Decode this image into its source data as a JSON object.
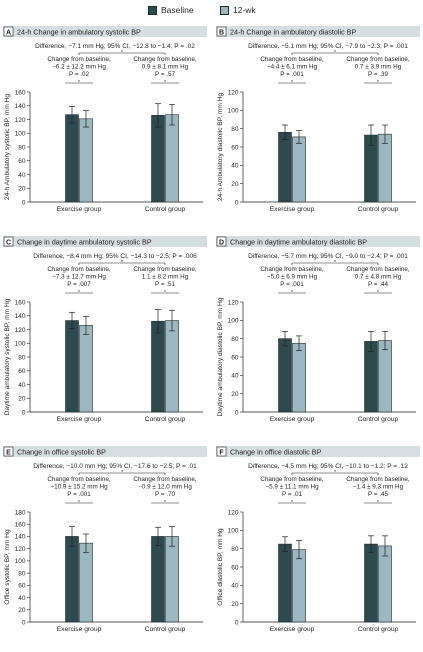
{
  "legend": [
    {
      "label": "Baseline",
      "color": "#2d4a4e"
    },
    {
      "label": "12-wk",
      "color": "#9bb7c1"
    }
  ],
  "colors": {
    "header_bg": "#d5dee0",
    "axis": "#231f20"
  },
  "chart_data": [
    {
      "type": "bar",
      "panel": "A",
      "title": "24-h Change in ambulatory systolic BP",
      "ylabel": "24-h Ambulatory systolic BP, mm Hg",
      "ylim": [
        0,
        160
      ],
      "yticks": [
        0,
        20,
        40,
        60,
        80,
        100,
        120,
        140,
        160
      ],
      "categories": [
        "Exercise group",
        "Control group"
      ],
      "series": [
        {
          "name": "Baseline",
          "values": [
            127,
            126
          ],
          "err": [
            12,
            17
          ]
        },
        {
          "name": "12-wk",
          "values": [
            121,
            127
          ],
          "err": [
            12,
            15
          ]
        }
      ],
      "difference": "Difference, −7.1 mm Hg; 95% CI, −12.8 to −1.4; P = .02",
      "annotations": [
        [
          "Change from baseline,",
          "−6.2 ± 12.2 mm Hg",
          "P = .02"
        ],
        [
          "Change from baseline,",
          "0.9 ± 8.1 mm Hg",
          "P = .57"
        ]
      ]
    },
    {
      "type": "bar",
      "panel": "B",
      "title": "24-h Change in ambulatory diastolic BP",
      "ylabel": "24-h Ambulatory diastolic BP, mm Hg",
      "ylim": [
        0,
        120
      ],
      "yticks": [
        0,
        20,
        40,
        60,
        80,
        100,
        120
      ],
      "categories": [
        "Exercise group",
        "Control group"
      ],
      "series": [
        {
          "name": "Baseline",
          "values": [
            76,
            73
          ],
          "err": [
            8,
            11
          ]
        },
        {
          "name": "12-wk",
          "values": [
            71,
            74
          ],
          "err": [
            7,
            10
          ]
        }
      ],
      "difference": "Difference, −5.1 mm Hg; 95% CI, −7.9 to −2.3; P = .001",
      "annotations": [
        [
          "Change from baseline,",
          "−4.4 ± 6.1 mm Hg",
          "P = .001"
        ],
        [
          "Change from baseline,",
          "0.7 ± 3.9 mm Hg",
          "P = .39"
        ]
      ]
    },
    {
      "type": "bar",
      "panel": "C",
      "title": "Change in daytime ambulatory systolic BP",
      "ylabel": "Daytime ambulatory systolic BP, mm Hg",
      "ylim": [
        0,
        160
      ],
      "yticks": [
        0,
        20,
        40,
        60,
        80,
        100,
        120,
        140,
        160
      ],
      "categories": [
        "Exercise group",
        "Control group"
      ],
      "series": [
        {
          "name": "Baseline",
          "values": [
            133,
            132
          ],
          "err": [
            12,
            17
          ]
        },
        {
          "name": "12-wk",
          "values": [
            126,
            133
          ],
          "err": [
            13,
            15
          ]
        }
      ],
      "difference": "Difference, −8.4 mm Hg; 95% CI, −14.3 to −2.5; P = .006",
      "annotations": [
        [
          "Change from baseline,",
          "−7.3 ± 12.7 mm Hg",
          "P = .007"
        ],
        [
          "Change from baseline,",
          "1.1 ± 8.2 mm Hg",
          "P = .51"
        ]
      ]
    },
    {
      "type": "bar",
      "panel": "D",
      "title": "Change in daytime ambulatory diastolic BP",
      "ylabel": "Daytime ambulatory diastolic BP, mm Hg",
      "ylim": [
        0,
        120
      ],
      "yticks": [
        0,
        20,
        40,
        60,
        80,
        100,
        120
      ],
      "categories": [
        "Exercise group",
        "Control group"
      ],
      "series": [
        {
          "name": "Baseline",
          "values": [
            80,
            77
          ],
          "err": [
            8,
            11
          ]
        },
        {
          "name": "12-wk",
          "values": [
            75,
            78
          ],
          "err": [
            8,
            10
          ]
        }
      ],
      "difference": "Difference, −5.7 mm Hg; 95% CI, −9.0 to −2.4; P = .001",
      "annotations": [
        [
          "Change from baseline,",
          "−5.0 ± 6.9 mm Hg",
          "P = .001"
        ],
        [
          "Change from baseline,",
          "0.7 ± 4.8 mm Hg",
          "P = .44"
        ]
      ]
    },
    {
      "type": "bar",
      "panel": "E",
      "title": "Change in office systolic BP",
      "ylabel": "Office systolic BP, mm Hg",
      "ylim": [
        0,
        180
      ],
      "yticks": [
        0,
        20,
        40,
        60,
        80,
        100,
        120,
        140,
        160,
        180
      ],
      "categories": [
        "Exercise group",
        "Control group"
      ],
      "series": [
        {
          "name": "Baseline",
          "values": [
            140,
            140
          ],
          "err": [
            16,
            15
          ]
        },
        {
          "name": "12-wk",
          "values": [
            129,
            140
          ],
          "err": [
            15,
            16
          ]
        }
      ],
      "difference": "Difference, −10.0 mm Hg; 95% CI, −17.6 to −2.5; P = .01",
      "annotations": [
        [
          "Change from baseline,",
          "−10.9 ± 15.2 mm Hg",
          "P = .001"
        ],
        [
          "Change from baseline,",
          "−0.9 ± 12.0 mm Hg",
          "P = .70"
        ]
      ]
    },
    {
      "type": "bar",
      "panel": "F",
      "title": "Change in office diastolic BP",
      "ylabel": "Office diastolic BP, mm Hg",
      "ylim": [
        0,
        120
      ],
      "yticks": [
        0,
        20,
        40,
        60,
        80,
        100,
        120
      ],
      "categories": [
        "Exercise group",
        "Control group"
      ],
      "series": [
        {
          "name": "Baseline",
          "values": [
            85,
            85
          ],
          "err": [
            8,
            9
          ]
        },
        {
          "name": "12-wk",
          "values": [
            79,
            83
          ],
          "err": [
            10,
            11
          ]
        }
      ],
      "difference": "Difference, −4.5 mm Hg; 95% CI, −10.1 to −1.2; P = .12",
      "annotations": [
        [
          "Change from baseline,",
          "−5.9 ± 11.1 mm Hg",
          "P = .01"
        ],
        [
          "Change from baseline,",
          "−1.4 ± 9.3 mm Hg",
          "P = .45"
        ]
      ]
    }
  ]
}
